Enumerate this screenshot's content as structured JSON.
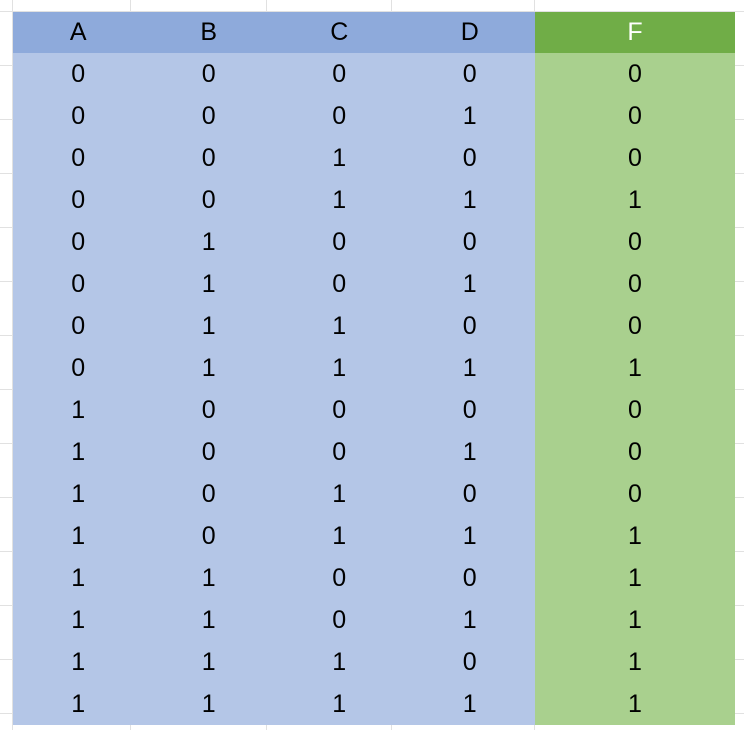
{
  "headers": {
    "inputs": [
      "A",
      "B",
      "C",
      "D"
    ],
    "output": "F"
  },
  "rows": [
    [
      "0",
      "0",
      "0",
      "0",
      "0"
    ],
    [
      "0",
      "0",
      "0",
      "1",
      "0"
    ],
    [
      "0",
      "0",
      "1",
      "0",
      "0"
    ],
    [
      "0",
      "0",
      "1",
      "1",
      "1"
    ],
    [
      "0",
      "1",
      "0",
      "0",
      "0"
    ],
    [
      "0",
      "1",
      "0",
      "1",
      "0"
    ],
    [
      "0",
      "1",
      "1",
      "0",
      "0"
    ],
    [
      "0",
      "1",
      "1",
      "1",
      "1"
    ],
    [
      "1",
      "0",
      "0",
      "0",
      "0"
    ],
    [
      "1",
      "0",
      "0",
      "1",
      "0"
    ],
    [
      "1",
      "0",
      "1",
      "0",
      "0"
    ],
    [
      "1",
      "0",
      "1",
      "1",
      "1"
    ],
    [
      "1",
      "1",
      "0",
      "0",
      "1"
    ],
    [
      "1",
      "1",
      "0",
      "1",
      "1"
    ],
    [
      "1",
      "1",
      "1",
      "0",
      "1"
    ],
    [
      "1",
      "1",
      "1",
      "1",
      "1"
    ]
  ],
  "colors": {
    "input_header": "#8eaadb",
    "input_cells": "#b4c6e7",
    "output_header": "#70ad47",
    "output_cells": "#a9d08e"
  }
}
